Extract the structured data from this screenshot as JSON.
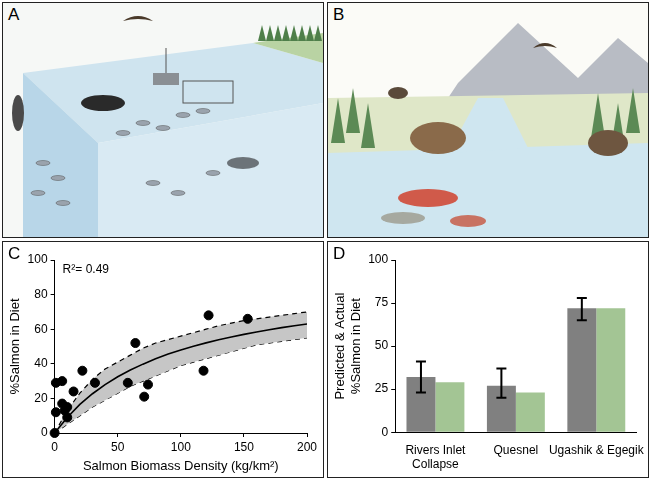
{
  "panels": [
    {
      "label": "A"
    },
    {
      "label": "B"
    }
  ],
  "chart_data": [
    {
      "label": "C",
      "type": "scatter",
      "annotations": [
        "R²= 0.49"
      ],
      "x_label": "Salmon Biomass Density (kg/km²)",
      "y_label": "%Salmon in Diet",
      "xlim": [
        0,
        200
      ],
      "xticks": [
        0,
        50,
        100,
        150,
        200
      ],
      "ylim": [
        0,
        100
      ],
      "yticks": [
        0,
        20,
        40,
        60,
        80,
        100
      ],
      "grid": false,
      "series": [
        {
          "type": "band",
          "color": "#c6c6c6",
          "line_style": "dashed",
          "x": [
            0,
            10,
            20,
            30,
            40,
            50,
            60,
            70,
            80,
            90,
            100,
            110,
            120,
            130,
            140,
            150,
            160,
            170,
            180,
            190,
            200
          ],
          "lower": [
            0,
            5,
            10,
            15,
            19,
            23,
            27,
            30,
            33,
            36,
            39,
            41,
            43,
            45,
            47,
            49,
            51,
            52,
            53,
            54,
            55
          ],
          "upper": [
            0,
            13,
            23,
            31,
            37,
            41,
            45,
            49,
            52,
            54,
            56,
            58,
            60,
            62,
            63.5,
            65,
            66,
            67,
            68,
            69,
            70
          ]
        },
        {
          "type": "line",
          "color": "#000000",
          "line_style": "solid",
          "x": [
            0,
            10,
            20,
            30,
            40,
            50,
            60,
            70,
            80,
            90,
            100,
            110,
            120,
            130,
            140,
            150,
            160,
            170,
            180,
            190,
            200
          ],
          "values": [
            0,
            9,
            16.5,
            22.7,
            28,
            32.5,
            36.4,
            39.8,
            42.9,
            45.6,
            48,
            50.1,
            52.1,
            53.9,
            55.5,
            57,
            58.4,
            59.7,
            60.9,
            62,
            63
          ]
        },
        {
          "type": "scatter",
          "color": "#000000",
          "marker": "circle",
          "x": [
            0,
            1,
            1,
            6,
            6,
            8,
            10,
            10,
            15,
            22,
            32,
            58,
            64,
            71,
            74,
            118,
            122,
            153
          ],
          "values": [
            0,
            12,
            29,
            30,
            17,
            13,
            15,
            9,
            24,
            36,
            29,
            29,
            52,
            21,
            28,
            36,
            68,
            66
          ]
        }
      ]
    },
    {
      "label": "D",
      "type": "bar",
      "y_label": [
        "Predicted & Actual",
        "%Salmon in Diet"
      ],
      "categories": [
        [
          "Rivers Inlet",
          "Collapse"
        ],
        "Quesnel",
        "Ugashik & Egegik"
      ],
      "ylim": [
        0,
        100
      ],
      "yticks": [
        0,
        25,
        50,
        75,
        100
      ],
      "grid": false,
      "series": [
        {
          "color": "#808080",
          "values": [
            32,
            27,
            72
          ],
          "error_low": [
            23,
            20,
            65
          ],
          "error_high": [
            41,
            37,
            78
          ]
        },
        {
          "color": "#a3c594",
          "values": [
            29,
            23,
            72
          ]
        }
      ]
    }
  ]
}
